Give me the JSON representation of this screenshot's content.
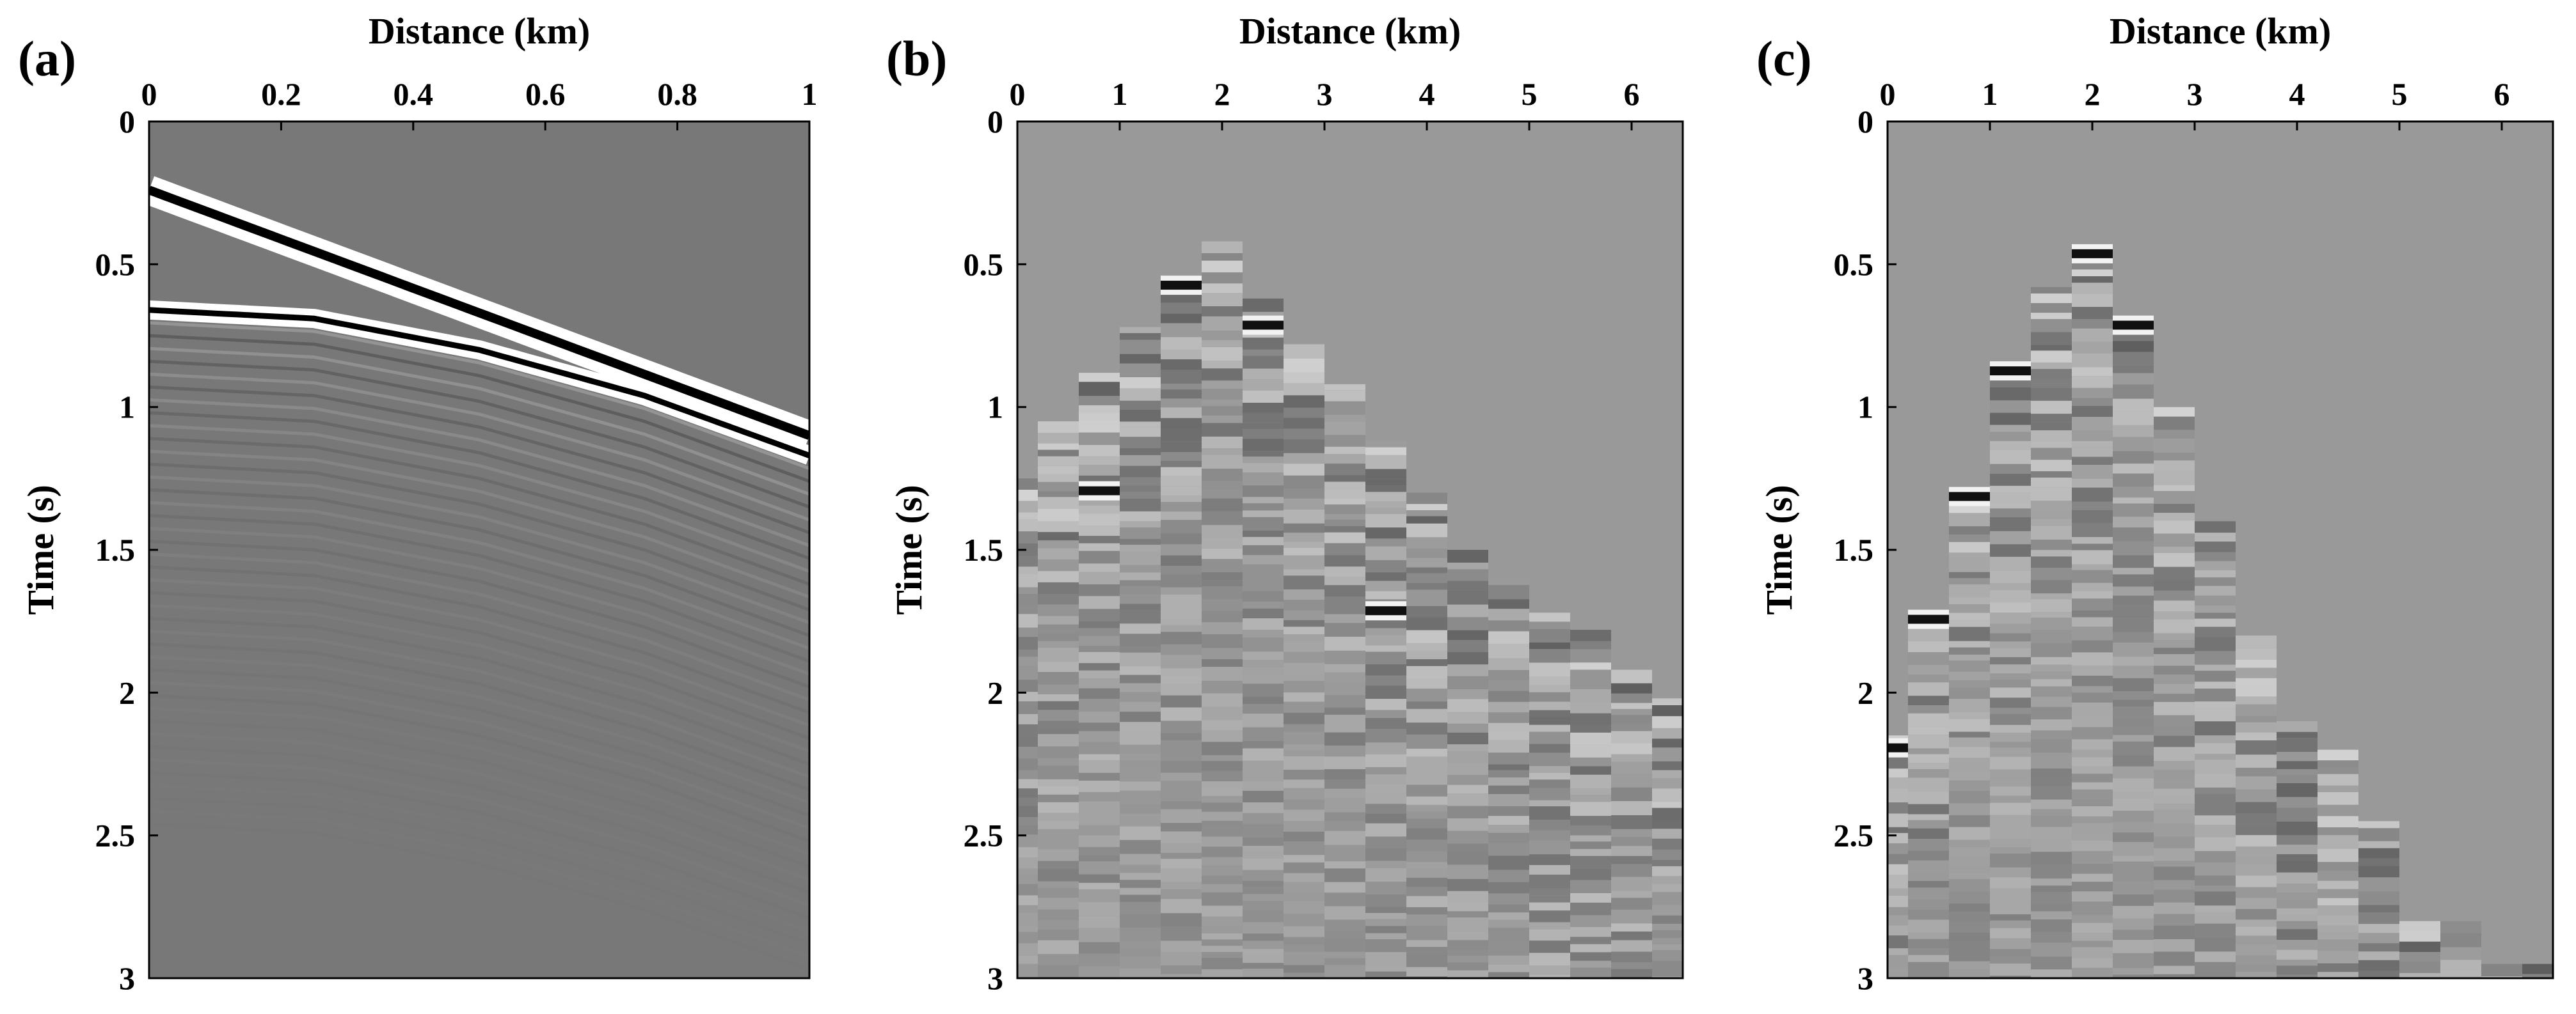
{
  "chart_data": [
    {
      "panel": "(a)",
      "type": "heatmap",
      "title": "",
      "xlabel": "Distance (km)",
      "ylabel": "Time (s)",
      "xlim": [
        0,
        1
      ],
      "ylim": [
        3,
        0
      ],
      "xticks": [
        "0",
        "0.2",
        "0.4",
        "0.6",
        "0.8",
        "1"
      ],
      "yticks": [
        "0",
        "0.5",
        "1",
        "1.5",
        "2",
        "2.5",
        "3"
      ],
      "colormap": "gray",
      "background_gray": 0.47,
      "events": [
        {
          "name": "direct",
          "shape": "linear",
          "x": [
            0,
            1
          ],
          "t": [
            0.24,
            1.1
          ]
        },
        {
          "name": "reflection",
          "shape": "hyperbolic",
          "x": [
            0,
            0.25,
            0.5,
            0.75,
            1
          ],
          "t": [
            0.66,
            0.69,
            0.8,
            0.96,
            1.17
          ]
        }
      ]
    },
    {
      "panel": "(b)",
      "type": "heatmap",
      "title": "",
      "xlabel": "Distance (km)",
      "ylabel": "Time (s)",
      "xlim": [
        0,
        6.5
      ],
      "ylim": [
        3,
        0
      ],
      "xticks": [
        "0",
        "1",
        "2",
        "3",
        "4",
        "5",
        "6"
      ],
      "yticks": [
        "0",
        "0.5",
        "1",
        "1.5",
        "2",
        "2.5",
        "3"
      ],
      "colormap": "gray",
      "background_gray": 0.6,
      "traces": {
        "x": [
          0,
          0.4,
          0.8,
          1.2,
          1.6,
          2.0,
          2.4,
          2.8,
          3.2,
          3.6,
          4.0,
          4.4,
          4.8,
          5.2,
          5.6,
          6.0,
          6.4
        ],
        "onset": [
          1.25,
          1.05,
          0.88,
          0.72,
          0.55,
          0.42,
          0.62,
          0.78,
          0.92,
          1.12,
          1.3,
          1.5,
          1.6,
          1.72,
          1.78,
          1.92,
          2.02
        ],
        "strong_events": [
          {
            "x": 1.6,
            "t": 0.58
          },
          {
            "x": 2.4,
            "t": 0.72
          },
          {
            "x": 3.6,
            "t": 1.72
          },
          {
            "x": 0.8,
            "t": 1.3
          }
        ]
      }
    },
    {
      "panel": "(c)",
      "type": "heatmap",
      "title": "",
      "xlabel": "Distance (km)",
      "ylabel": "Time (s)",
      "xlim": [
        0,
        6.5
      ],
      "ylim": [
        3,
        0
      ],
      "xticks": [
        "0",
        "1",
        "2",
        "3",
        "4",
        "5",
        "6"
      ],
      "yticks": [
        "0",
        "0.5",
        "1",
        "1.5",
        "2",
        "2.5",
        "3"
      ],
      "colormap": "gray",
      "background_gray": 0.6,
      "traces": {
        "x": [
          0,
          0.4,
          0.8,
          1.2,
          1.6,
          2.0,
          2.4,
          2.8,
          3.2,
          3.6,
          4.0,
          4.4,
          4.8,
          5.2,
          5.6,
          6.0,
          6.4
        ],
        "onset": [
          2.15,
          1.75,
          1.3,
          0.88,
          0.58,
          0.46,
          0.72,
          1.0,
          1.4,
          1.8,
          2.1,
          2.2,
          2.45,
          2.8,
          2.8,
          2.95,
          2.95
        ],
        "strong_events": [
          {
            "x": 0,
            "t": 2.2
          },
          {
            "x": 0.4,
            "t": 1.75
          },
          {
            "x": 0.8,
            "t": 1.32
          },
          {
            "x": 1.2,
            "t": 0.88
          },
          {
            "x": 2.0,
            "t": 0.47
          },
          {
            "x": 2.4,
            "t": 0.72
          }
        ]
      }
    }
  ]
}
